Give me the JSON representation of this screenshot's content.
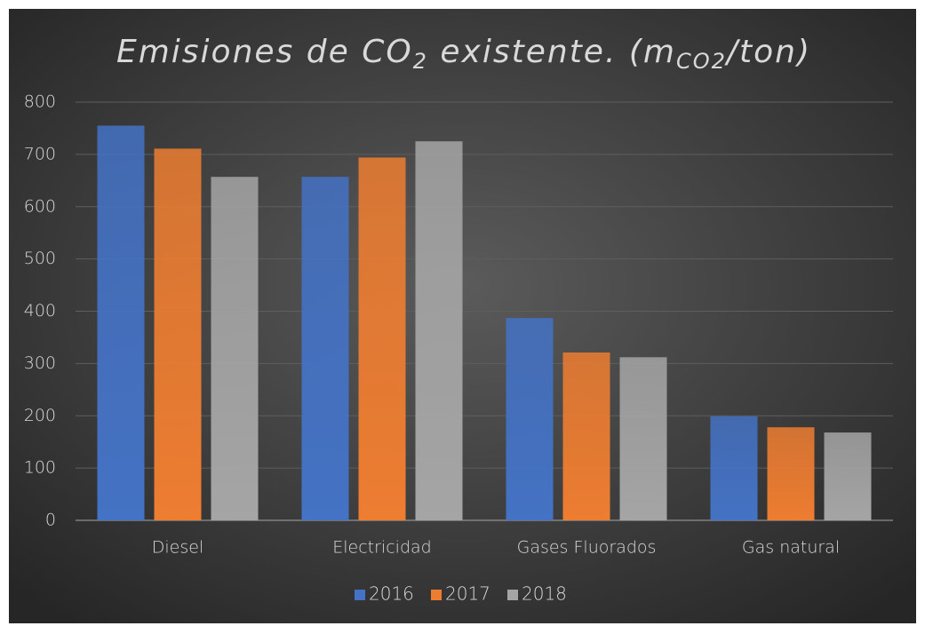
{
  "chart_data": {
    "type": "bar",
    "title": [
      "Emisiones de CO",
      "2",
      " existente. (m",
      "CO2",
      "/ton)"
    ],
    "categories": [
      "Diesel",
      "Electricidad",
      "Gases Fluorados",
      "Gas natural"
    ],
    "series": [
      {
        "name": "2016",
        "color": "#4472c4",
        "values": [
          755,
          657,
          387,
          199
        ]
      },
      {
        "name": "2017",
        "color": "#ed7d31",
        "values": [
          711,
          694,
          321,
          178
        ]
      },
      {
        "name": "2018",
        "color": "#a5a5a5",
        "values": [
          657,
          725,
          312,
          168
        ]
      }
    ],
    "ylim": [
      0,
      800
    ],
    "yticks": [
      0,
      100,
      200,
      300,
      400,
      500,
      600,
      700,
      800
    ],
    "grid": true,
    "legend": "bottom"
  }
}
